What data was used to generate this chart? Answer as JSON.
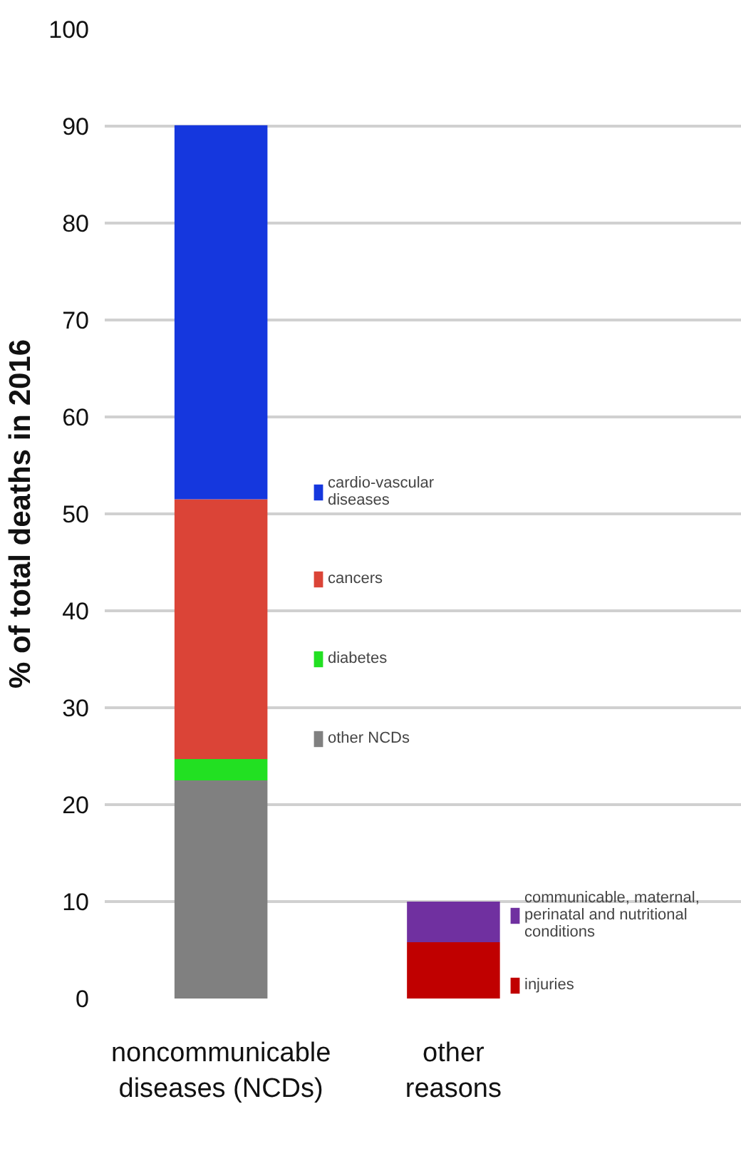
{
  "chart_data": {
    "type": "bar",
    "stacked": true,
    "ylabel": "% of total deaths in 2016",
    "categories": [
      "noncommunicable\ndiseases (NCDs)",
      "other\nreasons"
    ],
    "series": [
      {
        "name": "other NCDs",
        "color": "#808080",
        "values": [
          22.5,
          null
        ]
      },
      {
        "name": "diabetes",
        "color": "#22e022",
        "values": [
          2.2,
          null
        ]
      },
      {
        "name": "cancers",
        "color": "#db4437",
        "values": [
          26.8,
          null
        ]
      },
      {
        "name": "cardio-vascular diseases",
        "color": "#1537de",
        "values": [
          38.6,
          null
        ]
      },
      {
        "name": "injuries",
        "color": "#c00000",
        "values": [
          null,
          5.8
        ]
      },
      {
        "name": "communicable, maternal, perinatal and nutritional conditions",
        "color": "#7030a0",
        "values": [
          null,
          4.2
        ]
      }
    ],
    "ylim": [
      0,
      100
    ],
    "yticks": [
      0,
      10,
      20,
      30,
      40,
      50,
      60,
      70,
      80,
      90,
      100
    ],
    "grid": "y",
    "legend": "right"
  }
}
